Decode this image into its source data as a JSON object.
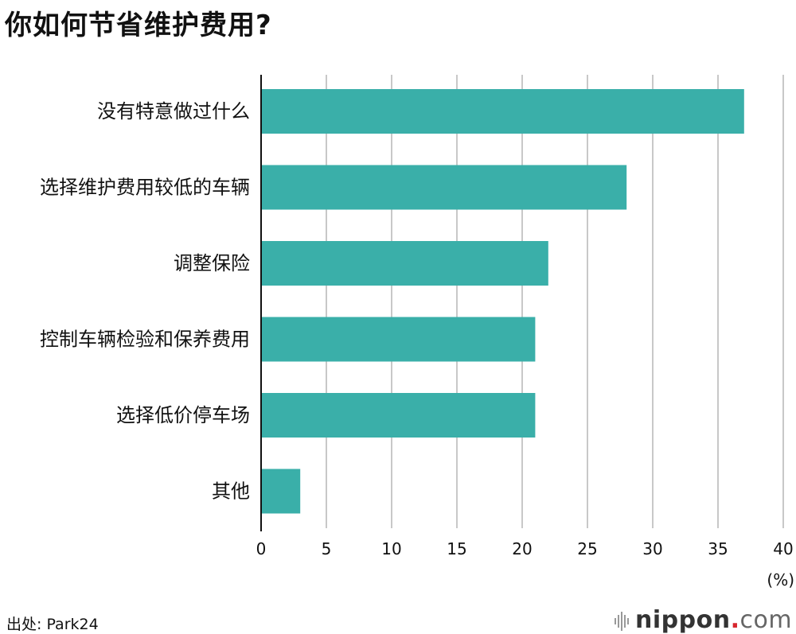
{
  "title": "你如何节省维护费用?",
  "source": "出处: Park24",
  "logo": {
    "name": "nippon",
    "dot": ".",
    "tld": "com"
  },
  "colors": {
    "bar": "#3aafa9",
    "grid": "#c8c8c8",
    "axis": "#111111"
  },
  "chart_data": {
    "type": "bar",
    "orientation": "horizontal",
    "categories": [
      "没有特意做过什么",
      "选择维护费用较低的车辆",
      "调整保险",
      "控制车辆检验和保养费用",
      "选择低价停车场",
      "其他"
    ],
    "values": [
      37,
      28,
      22,
      21,
      21,
      3
    ],
    "xlim": [
      0,
      40
    ],
    "xticks": [
      0,
      5,
      10,
      15,
      20,
      25,
      30,
      35,
      40
    ],
    "unit_label": "(%)",
    "grid": true
  }
}
